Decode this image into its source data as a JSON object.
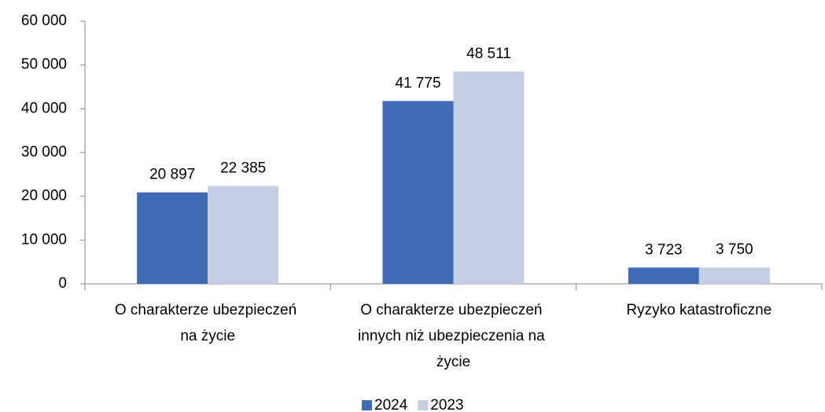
{
  "chart_data": {
    "type": "bar",
    "categories": [
      "O charakterze ubezpieczeń na życie",
      "O charakterze ubezpieczeń innych niż ubezpieczenia na życie",
      "Ryzyko katastroficzne"
    ],
    "series": [
      {
        "name": "2024",
        "color": "#416bb4",
        "values": [
          20897,
          41775,
          3723
        ],
        "value_labels": [
          "20 897",
          "41 775",
          "3 723"
        ]
      },
      {
        "name": "2023",
        "color": "#c5cfe3",
        "values": [
          22385,
          48511,
          3750
        ],
        "value_labels": [
          "22 385",
          "48 511",
          "3 750"
        ]
      }
    ],
    "ylim": [
      0,
      60000
    ],
    "yticks": [
      0,
      {
        "value": 10000,
        "label": "10 000"
      },
      {
        "value": 20000,
        "label": "20 000"
      },
      {
        "value": 30000,
        "label": "30 000"
      },
      {
        "value": 40000,
        "label": "40 000"
      },
      {
        "value": 50000,
        "label": "50 000"
      },
      {
        "value": 60000,
        "label": "60 000"
      }
    ],
    "legend": "bottom"
  }
}
